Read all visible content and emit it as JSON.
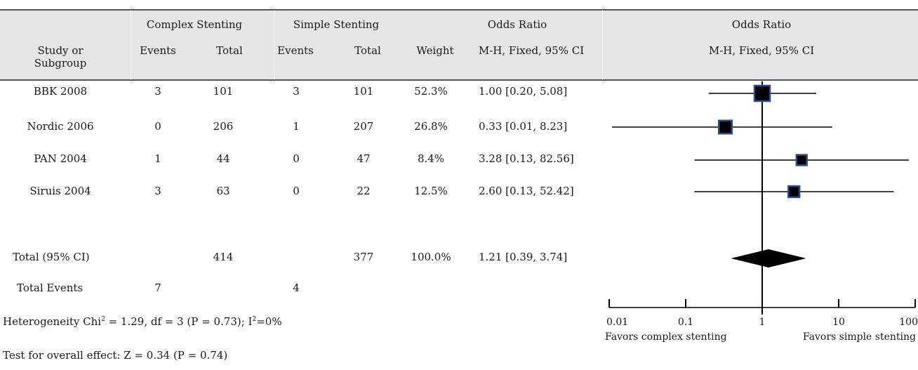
{
  "header": {
    "group1": "Complex Stenting",
    "group2": "Simple Stenting",
    "or_col": "Odds Ratio",
    "or_plot": "Odds Ratio",
    "study": "Study or",
    "subgroup": "Subgroup",
    "events1": "Events",
    "total1": "Total",
    "events2": "Events",
    "total2": "Total",
    "weight": "Weight",
    "method_col": "M-H, Fixed, 95% CI",
    "method_plot": "M-H, Fixed, 95% CI"
  },
  "studies": [
    {
      "name": "BBK 2008",
      "events1": "3",
      "total1": "101",
      "events2": "3",
      "total2": "101",
      "weight": "52.3%",
      "ci_text": "1.00 [0.20, 5.08]"
    },
    {
      "name": "Nordic 2006",
      "events1": "0",
      "total1": "206",
      "events2": "1",
      "total2": "207",
      "weight": "26.8%",
      "ci_text": "0.33 [0.01, 8.23]"
    },
    {
      "name": "PAN 2004",
      "events1": "1",
      "total1": "44",
      "events2": "0",
      "total2": "47",
      "weight": "8.4%",
      "ci_text": "3.28 [0.13, 82.56]"
    },
    {
      "name": "Siruis 2004",
      "events1": "3",
      "total1": "63",
      "events2": "0",
      "total2": "22",
      "weight": "12.5%",
      "ci_text": "2.60 [0.13, 52.42]"
    }
  ],
  "total": {
    "label": "Total (95% CI)",
    "total1": "414",
    "total2": "377",
    "weight": "100.0%",
    "ci_text": "1.21 [0.39, 3.74]"
  },
  "events_row": {
    "label": "Total Events",
    "events1": "7",
    "events2": "4"
  },
  "heterogeneity": {
    "prefix": "Heterogeneity  Chi",
    "sup1": "2",
    "mid": " = 1.29, df = 3 (P = 0.73); I",
    "sup2": "2",
    "suffix": "=0%"
  },
  "overall_effect": "Test for overall effect: Z = 0.34 (P = 0.74)",
  "axis": {
    "ticks": [
      "0.01",
      "0.1",
      "1",
      "10",
      "100"
    ],
    "favors_left": "Favors complex stenting",
    "favors_right": "Favors simple stenting"
  },
  "chart_data": {
    "type": "forest",
    "scale": "log",
    "xlim": [
      0.01,
      100
    ],
    "null_line": 1,
    "series": [
      {
        "study": "BBK 2008",
        "or": 1.0,
        "lower": 0.2,
        "upper": 5.08,
        "weight": 52.3
      },
      {
        "study": "Nordic 2006",
        "or": 0.33,
        "lower": 0.01,
        "upper": 8.23,
        "weight": 26.8
      },
      {
        "study": "PAN 2004",
        "or": 3.28,
        "lower": 0.13,
        "upper": 82.56,
        "weight": 8.4
      },
      {
        "study": "Siruis 2004",
        "or": 2.6,
        "lower": 0.13,
        "upper": 52.42,
        "weight": 12.5
      }
    ],
    "pooled": {
      "or": 1.21,
      "lower": 0.39,
      "upper": 3.74
    },
    "colors": {
      "marker_fill": "#000000",
      "marker_border": "#2f4b8f",
      "line": "#000000"
    }
  }
}
